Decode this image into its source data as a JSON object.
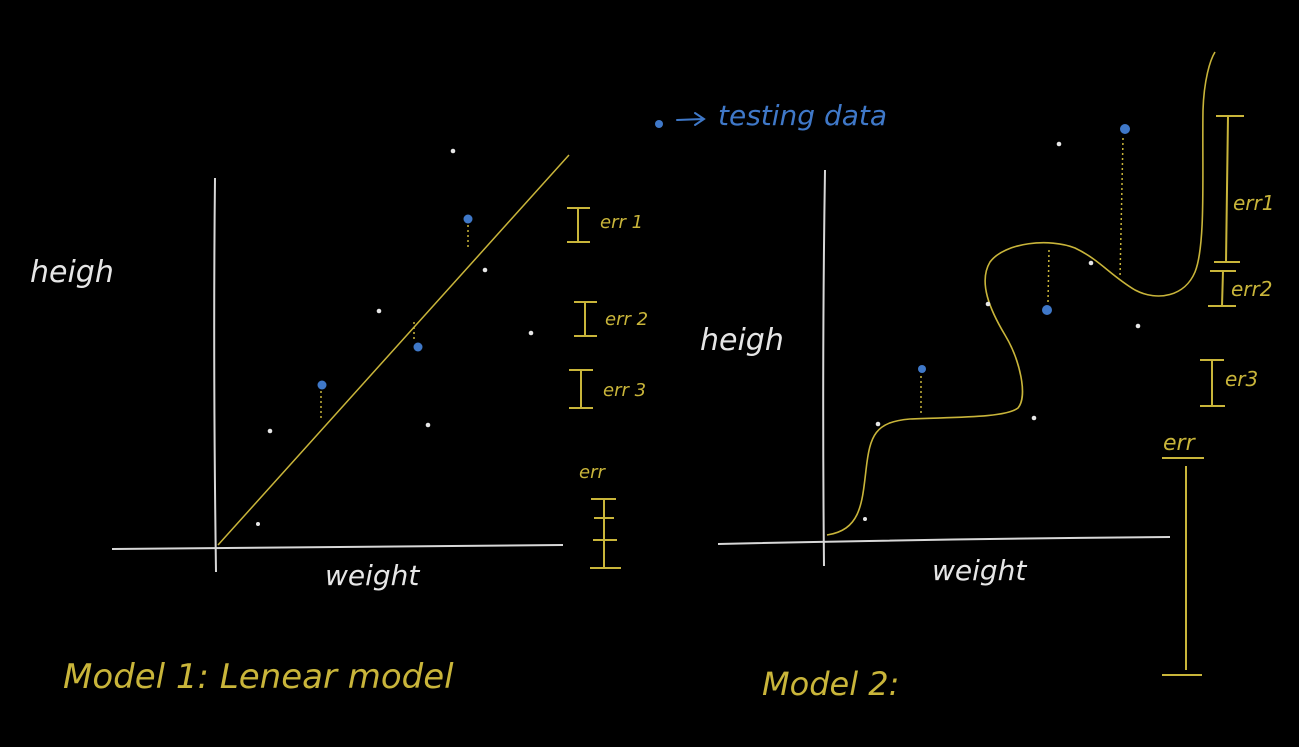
{
  "legend": {
    "testing_label": "testing data"
  },
  "left_panel": {
    "y_axis_label": "heigh",
    "x_axis_label": "weight",
    "caption": "Model 1: Lenear model",
    "error_labels": [
      "err 1",
      "err 2",
      "err 3"
    ],
    "total_label": "err"
  },
  "right_panel": {
    "y_axis_label": "heigh",
    "x_axis_label": "weight",
    "caption": "Model 2:",
    "error_labels": [
      "err1",
      "err2",
      "er3"
    ],
    "total_label": "err"
  },
  "colors": {
    "background": "#000000",
    "chalk": "#e6e6e6",
    "yellow": "#c9b53a",
    "blue": "#3f78c8"
  }
}
